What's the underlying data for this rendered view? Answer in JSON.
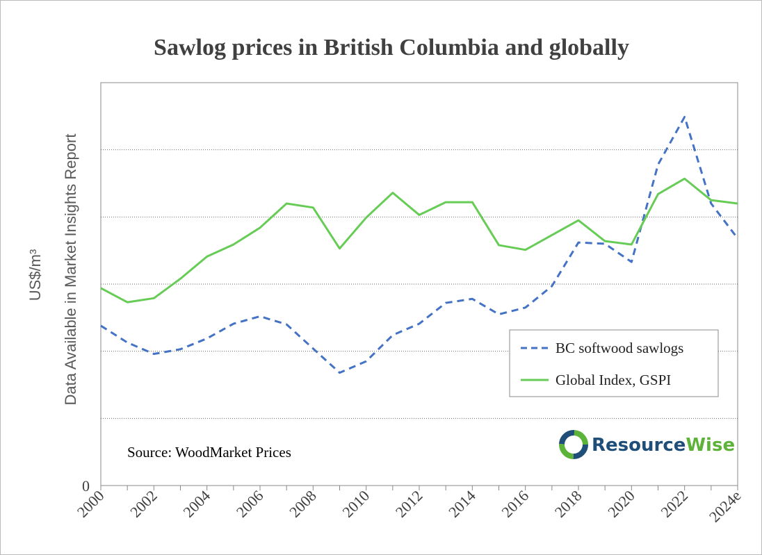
{
  "chart_data": {
    "type": "line",
    "title": "Sawlog prices in British Columbia and globally",
    "ylabel_unit": "US$/m³",
    "ylabel_note": "Data Available in Market Insights Report",
    "y_tick_labels": [
      "0"
    ],
    "ylim": [
      0,
      6
    ],
    "grid": "horizontal dotted",
    "x": [
      2000,
      2001,
      2002,
      2003,
      2004,
      2005,
      2006,
      2007,
      2008,
      2009,
      2010,
      2011,
      2012,
      2013,
      2014,
      2015,
      2016,
      2017,
      2018,
      2019,
      2020,
      2021,
      2022,
      2023,
      2024
    ],
    "x_tick_labels": [
      "2000",
      "2002",
      "2004",
      "2006",
      "2008",
      "2010",
      "2012",
      "2014",
      "2016",
      "2018",
      "2020",
      "2022",
      "2024e"
    ],
    "series": [
      {
        "name": "BC softwood sawlogs",
        "style": "dashed",
        "color": "#4472C4",
        "values": [
          2.38,
          2.13,
          1.96,
          2.03,
          2.19,
          2.41,
          2.52,
          2.4,
          2.04,
          1.68,
          1.85,
          2.24,
          2.41,
          2.72,
          2.78,
          2.55,
          2.65,
          2.97,
          3.62,
          3.6,
          3.33,
          4.78,
          5.49,
          4.2,
          3.68
        ]
      },
      {
        "name": "Global Index, GSPI",
        "style": "solid",
        "color": "#66CC55",
        "values": [
          2.94,
          2.73,
          2.79,
          3.08,
          3.41,
          3.59,
          3.84,
          4.2,
          4.14,
          3.53,
          3.99,
          4.36,
          4.03,
          4.22,
          4.22,
          3.58,
          3.51,
          3.73,
          3.95,
          3.64,
          3.59,
          4.34,
          4.57,
          4.25,
          4.2
        ]
      }
    ],
    "legend": "lower-right",
    "annotation": "Source: WoodMarket Prices"
  },
  "logo": {
    "text_a": "Resource",
    "text_b": "Wise",
    "color_a": "#1F4E79",
    "color_b": "#5DB33A"
  }
}
